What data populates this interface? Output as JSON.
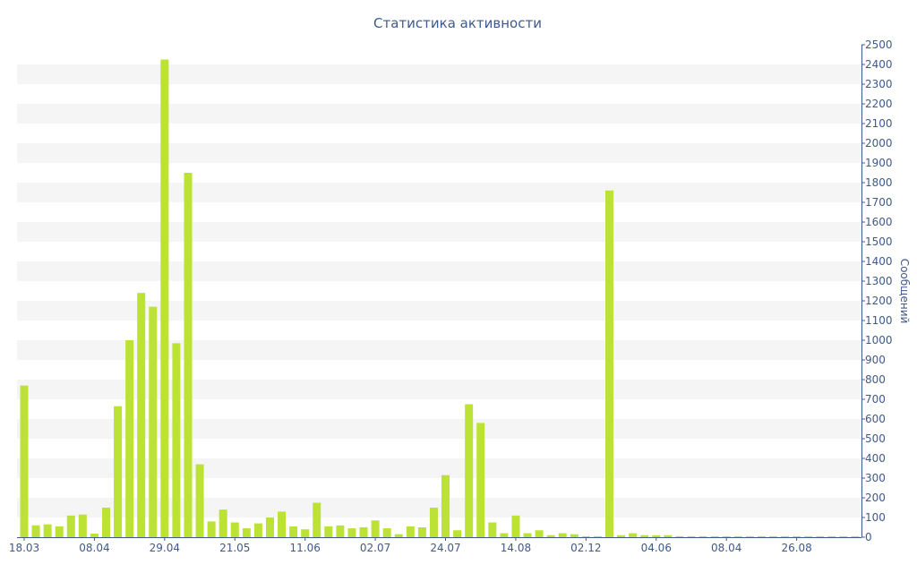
{
  "chart_data": {
    "type": "bar",
    "title": "Статистика активности",
    "ylabel": "Сообщений",
    "xlabel": "",
    "ylim": [
      0,
      2500
    ],
    "y_ticks": [
      0,
      100,
      200,
      300,
      400,
      500,
      600,
      700,
      800,
      900,
      1000,
      1100,
      1200,
      1300,
      1400,
      1500,
      1600,
      1700,
      1800,
      1900,
      2000,
      2100,
      2200,
      2300,
      2400,
      2500
    ],
    "y_axis_position": "right",
    "grid": "alternating horizontal bands",
    "x_tick_labels": [
      {
        "index": 0,
        "label": "18.03"
      },
      {
        "index": 6,
        "label": "08.04"
      },
      {
        "index": 12,
        "label": "29.04"
      },
      {
        "index": 18,
        "label": "21.05"
      },
      {
        "index": 24,
        "label": "11.06"
      },
      {
        "index": 30,
        "label": "02.07"
      },
      {
        "index": 36,
        "label": "24.07"
      },
      {
        "index": 42,
        "label": "14.08"
      },
      {
        "index": 48,
        "label": "02.12"
      },
      {
        "index": 54,
        "label": "04.06"
      },
      {
        "index": 60,
        "label": "08.04"
      },
      {
        "index": 66,
        "label": "26.08"
      }
    ],
    "values": [
      770,
      60,
      65,
      55,
      110,
      115,
      18,
      150,
      665,
      1000,
      1240,
      1170,
      2425,
      985,
      1850,
      370,
      80,
      140,
      75,
      45,
      70,
      100,
      130,
      55,
      40,
      175,
      55,
      60,
      45,
      50,
      85,
      45,
      15,
      55,
      50,
      150,
      315,
      35,
      675,
      580,
      75,
      20,
      110,
      20,
      35,
      10,
      20,
      15,
      5,
      5,
      1760,
      10,
      20,
      10,
      10,
      10,
      5,
      5,
      5,
      5,
      5,
      5,
      5,
      5,
      5,
      5,
      5,
      5,
      5,
      5,
      5,
      5
    ],
    "colors": {
      "bar": "#bbe234",
      "text": "#3e5a8a",
      "band": "#f5f5f5",
      "axis": "#3e5a8a"
    }
  }
}
